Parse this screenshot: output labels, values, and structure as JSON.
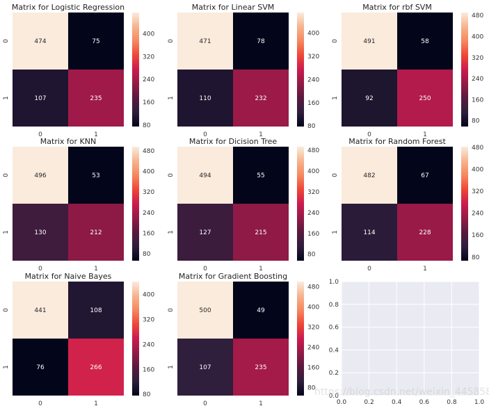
{
  "chart_data": [
    {
      "type": "heatmap",
      "title": "Matrix for Logistic Regression",
      "x_ticks": [
        "0",
        "1"
      ],
      "y_ticks": [
        "0",
        "1"
      ],
      "values": [
        [
          474,
          75
        ],
        [
          107,
          235
        ]
      ],
      "colorbar": {
        "range": [
          75,
          474
        ],
        "ticks": [
          80,
          160,
          240,
          320,
          400
        ]
      }
    },
    {
      "type": "heatmap",
      "title": "Matrix for Linear SVM",
      "x_ticks": [
        "0",
        "1"
      ],
      "y_ticks": [
        "0",
        "1"
      ],
      "values": [
        [
          471,
          78
        ],
        [
          110,
          232
        ]
      ],
      "colorbar": {
        "range": [
          78,
          471
        ],
        "ticks": [
          80,
          160,
          240,
          320,
          400
        ]
      }
    },
    {
      "type": "heatmap",
      "title": "Matrix for rbf SVM",
      "x_ticks": [
        "0",
        "1"
      ],
      "y_ticks": [
        "0",
        "1"
      ],
      "values": [
        [
          491,
          58
        ],
        [
          92,
          250
        ]
      ],
      "colorbar": {
        "range": [
          58,
          491
        ],
        "ticks": [
          80,
          160,
          240,
          320,
          400,
          480
        ]
      }
    },
    {
      "type": "heatmap",
      "title": "Matrix for KNN",
      "x_ticks": [
        "0",
        "1"
      ],
      "y_ticks": [
        "0",
        "1"
      ],
      "values": [
        [
          496,
          53
        ],
        [
          130,
          212
        ]
      ],
      "colorbar": {
        "range": [
          53,
          496
        ],
        "ticks": [
          80,
          160,
          240,
          320,
          400,
          480
        ]
      }
    },
    {
      "type": "heatmap",
      "title": "Matrix for Dicision Tree",
      "x_ticks": [
        "0",
        "1"
      ],
      "y_ticks": [
        "0",
        "1"
      ],
      "values": [
        [
          494,
          55
        ],
        [
          127,
          215
        ]
      ],
      "colorbar": {
        "range": [
          55,
          494
        ],
        "ticks": [
          80,
          160,
          240,
          320,
          400,
          480
        ]
      }
    },
    {
      "type": "heatmap",
      "title": "Matrix for Random Forest",
      "x_ticks": [
        "0",
        "1"
      ],
      "y_ticks": [
        "0",
        "1"
      ],
      "values": [
        [
          482,
          67
        ],
        [
          114,
          228
        ]
      ],
      "colorbar": {
        "range": [
          67,
          482
        ],
        "ticks": [
          80,
          160,
          240,
          320,
          400,
          480
        ]
      }
    },
    {
      "type": "heatmap",
      "title": "Matrix for Naive Bayes",
      "x_ticks": [
        "0",
        "1"
      ],
      "y_ticks": [
        "0",
        "1"
      ],
      "values": [
        [
          441,
          108
        ],
        [
          76,
          266
        ]
      ],
      "colorbar": {
        "range": [
          76,
          441
        ],
        "ticks": [
          80,
          160,
          240,
          320,
          400
        ]
      }
    },
    {
      "type": "heatmap",
      "title": "Matrix for Gradient Boosting",
      "x_ticks": [
        "0",
        "1"
      ],
      "y_ticks": [
        "0",
        "1"
      ],
      "values": [
        [
          500,
          49
        ],
        [
          107,
          235
        ]
      ],
      "colorbar": {
        "range": [
          49,
          500
        ],
        "ticks": [
          80,
          160,
          240,
          320,
          400,
          480
        ]
      }
    },
    {
      "type": "line",
      "title": "",
      "empty": true,
      "xlim": [
        0.0,
        1.0
      ],
      "ylim": [
        0.0,
        1.0
      ],
      "x_ticks": [
        "0.0",
        "0.2",
        "0.4",
        "0.6",
        "0.8",
        "1.0"
      ],
      "y_ticks": [
        "0.0",
        "0.2",
        "0.4",
        "0.6",
        "0.8",
        "1.0"
      ],
      "grid": true
    }
  ],
  "colors": {
    "empty_axes_bg": "#eaeaf2",
    "grid": "#ffffff",
    "colormap": [
      "#03051a",
      "#2e1e3c",
      "#59193f",
      "#931a46",
      "#cb1b4f",
      "#ef4637",
      "#f58860",
      "#f6b48e",
      "#faebdd"
    ]
  },
  "watermark": "https://blog.csdn.net/weixin_44585839"
}
